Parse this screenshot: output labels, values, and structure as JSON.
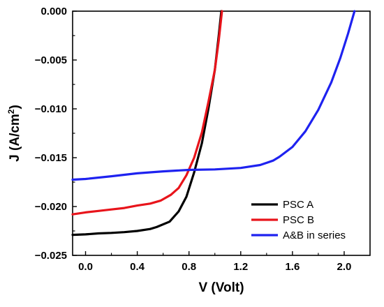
{
  "chart_data": {
    "type": "line",
    "xlabel": "V (Volt)",
    "ylabel_main": "J (A/cm",
    "ylabel_sup": "2",
    "ylabel_close": ")",
    "xlim": [
      -0.1,
      2.2
    ],
    "ylim": [
      -0.025,
      0.0
    ],
    "xticks": [
      0.0,
      0.4,
      0.8,
      1.2,
      1.6,
      2.0
    ],
    "xtick_labels": [
      "0.0",
      "0.4",
      "0.8",
      "1.2",
      "1.6",
      "2.0"
    ],
    "yticks": [
      0.0,
      -0.005,
      -0.01,
      -0.015,
      -0.02,
      -0.025
    ],
    "ytick_labels": [
      "0.000",
      "−0.005",
      "−0.010",
      "−0.015",
      "−0.020",
      "−0.025"
    ],
    "grid": false,
    "legend_position": "bottom-right",
    "series": [
      {
        "name": "PSC A",
        "color": "#000000",
        "x": [
          -0.1,
          0.0,
          0.1,
          0.2,
          0.3,
          0.4,
          0.5,
          0.55,
          0.65,
          0.72,
          0.78,
          0.84,
          0.9,
          0.95,
          1.0,
          1.03,
          1.05
        ],
        "y": [
          -0.0229,
          -0.02285,
          -0.02275,
          -0.0227,
          -0.02262,
          -0.0225,
          -0.0223,
          -0.0221,
          -0.02155,
          -0.0205,
          -0.019,
          -0.0165,
          -0.0135,
          -0.01,
          -0.006,
          -0.0025,
          0.0
        ]
      },
      {
        "name": "PSC B",
        "color": "#e8141b",
        "x": [
          -0.1,
          0.0,
          0.1,
          0.2,
          0.3,
          0.4,
          0.5,
          0.58,
          0.66,
          0.72,
          0.78,
          0.84,
          0.9,
          0.95,
          1.0,
          1.03,
          1.055
        ],
        "y": [
          -0.0208,
          -0.0206,
          -0.02045,
          -0.0203,
          -0.02015,
          -0.0199,
          -0.0197,
          -0.0194,
          -0.0188,
          -0.0181,
          -0.0168,
          -0.015,
          -0.0124,
          -0.0093,
          -0.006,
          -0.003,
          0.0
        ]
      },
      {
        "name": "A&B in series",
        "color": "#1e22f0",
        "x": [
          -0.1,
          0.0,
          0.2,
          0.4,
          0.6,
          0.8,
          1.0,
          1.2,
          1.35,
          1.45,
          1.5,
          1.6,
          1.7,
          1.8,
          1.9,
          1.97,
          2.03,
          2.08
        ],
        "y": [
          -0.01725,
          -0.01718,
          -0.0169,
          -0.0166,
          -0.0164,
          -0.01625,
          -0.0162,
          -0.01605,
          -0.01575,
          -0.0153,
          -0.0149,
          -0.0139,
          -0.0123,
          -0.0101,
          -0.0073,
          -0.0048,
          -0.0023,
          0.0
        ]
      }
    ]
  }
}
